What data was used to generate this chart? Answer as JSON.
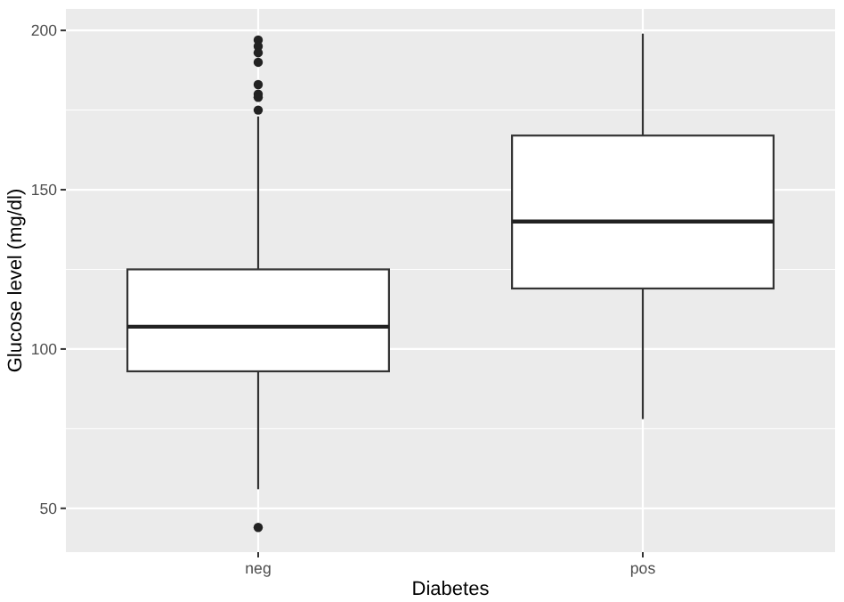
{
  "chart_data": {
    "type": "box",
    "xlabel": "Diabetes",
    "ylabel": "Glucose level (mg/dl)",
    "categories": [
      "neg",
      "pos"
    ],
    "boxes": [
      {
        "low": 56,
        "q1": 93,
        "median": 107,
        "q3": 125,
        "high": 173,
        "outliers": [
          197,
          195,
          193,
          190,
          183,
          180,
          179,
          175,
          44
        ]
      },
      {
        "low": 78,
        "q1": 119,
        "median": 140,
        "q3": 167,
        "high": 199
      }
    ],
    "ylim": [
      36.25,
      206.75
    ],
    "yticks": [
      50,
      100,
      150,
      200
    ],
    "grid": true
  }
}
